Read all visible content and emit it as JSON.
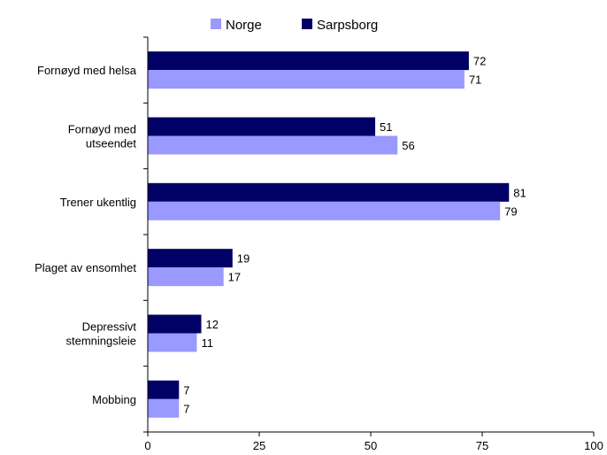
{
  "chart_data": {
    "type": "bar",
    "orientation": "horizontal",
    "categories": [
      [
        "Fornøyd med helsa"
      ],
      [
        "Fornøyd med",
        "utseendet"
      ],
      [
        "Trener ukentlig"
      ],
      [
        "Plaget av ensomhet"
      ],
      [
        "Depressivt",
        "stemningsleie"
      ],
      [
        "Mobbing"
      ]
    ],
    "series": [
      {
        "name": "Sarpsborg",
        "color": "#000066",
        "values": [
          72,
          51,
          81,
          19,
          12,
          7
        ]
      },
      {
        "name": "Norge",
        "color": "#9999ff",
        "values": [
          71,
          56,
          79,
          17,
          11,
          7
        ]
      }
    ],
    "legend_order": [
      "Norge",
      "Sarpsborg"
    ],
    "legend_position": "top",
    "xlim": [
      0,
      100
    ],
    "xticks": [
      0,
      25,
      50,
      75,
      100
    ],
    "grid": false,
    "title": "",
    "xlabel": "",
    "ylabel": ""
  }
}
